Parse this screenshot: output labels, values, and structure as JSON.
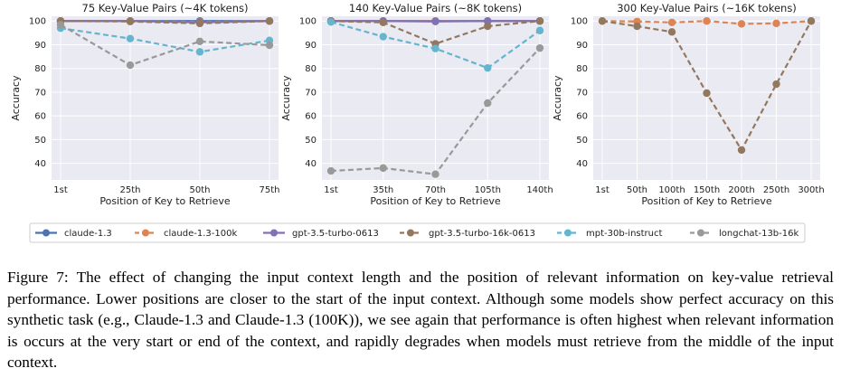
{
  "chart_data": [
    {
      "type": "line",
      "title": "75 Key-Value Pairs (~4K tokens)",
      "xlabel": "Position of Key to Retrieve",
      "ylabel": "Accuracy",
      "categories": [
        "1st",
        "25th",
        "50th",
        "75th"
      ],
      "ylim": [
        33,
        102
      ],
      "yticks": [
        40,
        50,
        60,
        70,
        80,
        90,
        100
      ],
      "grid": true,
      "series": [
        {
          "name": "claude-1.3",
          "values": [
            100,
            100,
            100,
            100
          ]
        },
        {
          "name": "claude-1.3-100k",
          "values": [
            100,
            100,
            99.6,
            100
          ]
        },
        {
          "name": "gpt-3.5-turbo-0613",
          "values": [
            100,
            100,
            99.4,
            100
          ]
        },
        {
          "name": "gpt-3.5-turbo-16k-0613",
          "values": [
            100,
            99.8,
            99,
            100
          ]
        },
        {
          "name": "mpt-30b-instruct",
          "values": [
            97,
            92.6,
            87,
            91.8
          ]
        },
        {
          "name": "longchat-13b-16k",
          "values": [
            98.4,
            81.4,
            91.4,
            89.8
          ]
        }
      ]
    },
    {
      "type": "line",
      "title": "140 Key-Value Pairs (~8K tokens)",
      "xlabel": "Position of Key to Retrieve",
      "ylabel": "Accuracy",
      "categories": [
        "1st",
        "35th",
        "70th",
        "105th",
        "140th"
      ],
      "ylim": [
        33,
        102
      ],
      "yticks": [
        40,
        50,
        60,
        70,
        80,
        90,
        100
      ],
      "grid": true,
      "series": [
        {
          "name": "claude-1.3",
          "values": [
            100,
            100,
            100,
            100,
            100
          ]
        },
        {
          "name": "claude-1.3-100k",
          "values": [
            100,
            100,
            100,
            100,
            100
          ]
        },
        {
          "name": "gpt-3.5-turbo-0613",
          "values": [
            100,
            100,
            99.8,
            100,
            100
          ]
        },
        {
          "name": "gpt-3.5-turbo-16k-0613",
          "values": [
            100,
            99.4,
            90.4,
            97.8,
            100
          ]
        },
        {
          "name": "mpt-30b-instruct",
          "values": [
            99.6,
            93.4,
            88.4,
            80.2,
            96
          ]
        },
        {
          "name": "longchat-13b-16k",
          "values": [
            36.8,
            38,
            35.4,
            65.4,
            88.6
          ]
        }
      ]
    },
    {
      "type": "line",
      "title": "300 Key-Value Pairs (~16K tokens)",
      "xlabel": "Position of Key to Retrieve",
      "ylabel": "Accuracy",
      "categories": [
        "1st",
        "50th",
        "100th",
        "150th",
        "200th",
        "250th",
        "300th"
      ],
      "ylim": [
        33,
        102
      ],
      "yticks": [
        40,
        50,
        60,
        70,
        80,
        90,
        100
      ],
      "grid": true,
      "series": [
        {
          "name": "claude-1.3-100k",
          "values": [
            100,
            99.8,
            99.4,
            100,
            98.8,
            99,
            100
          ]
        },
        {
          "name": "gpt-3.5-turbo-16k-0613",
          "values": [
            100,
            97.8,
            95.4,
            69.6,
            45.6,
            73.4,
            100
          ]
        }
      ]
    }
  ],
  "legend": {
    "placement": "bottom",
    "items": [
      {
        "label": "claude-1.3",
        "color": "#4c72b0"
      },
      {
        "label": "claude-1.3-100k",
        "color": "#dd8452"
      },
      {
        "label": "gpt-3.5-turbo-0613",
        "color": "#8172b3"
      },
      {
        "label": "gpt-3.5-turbo-16k-0613",
        "color": "#937860"
      },
      {
        "label": "mpt-30b-instruct",
        "color": "#64b5cd"
      },
      {
        "label": "longchat-13b-16k",
        "color": "#999999"
      }
    ]
  },
  "series_colors": {
    "claude-1.3": "#4c72b0",
    "claude-1.3-100k": "#dd8452",
    "gpt-3.5-turbo-0613": "#8172b3",
    "gpt-3.5-turbo-16k-0613": "#937860",
    "mpt-30b-instruct": "#64b5cd",
    "longchat-13b-16k": "#999999"
  },
  "series_style": {
    "claude-1.3": "solid",
    "claude-1.3-100k": "dashed",
    "gpt-3.5-turbo-0613": "solid",
    "gpt-3.5-turbo-16k-0613": "dashed",
    "mpt-30b-instruct": "dashed",
    "longchat-13b-16k": "dashed"
  },
  "plot_background": "#eaeaf2",
  "caption": "Figure 7: The effect of changing the input context length and the position of relevant information on key-value retrieval performance. Lower positions are closer to the start of the input context. Although some models show perfect accuracy on this synthetic task (e.g., Claude-1.3 and Claude-1.3 (100K)), we see again that performance is often highest when relevant information is occurs at the very start or end of the context, and rapidly degrades when models must retrieve from the middle of the input context."
}
